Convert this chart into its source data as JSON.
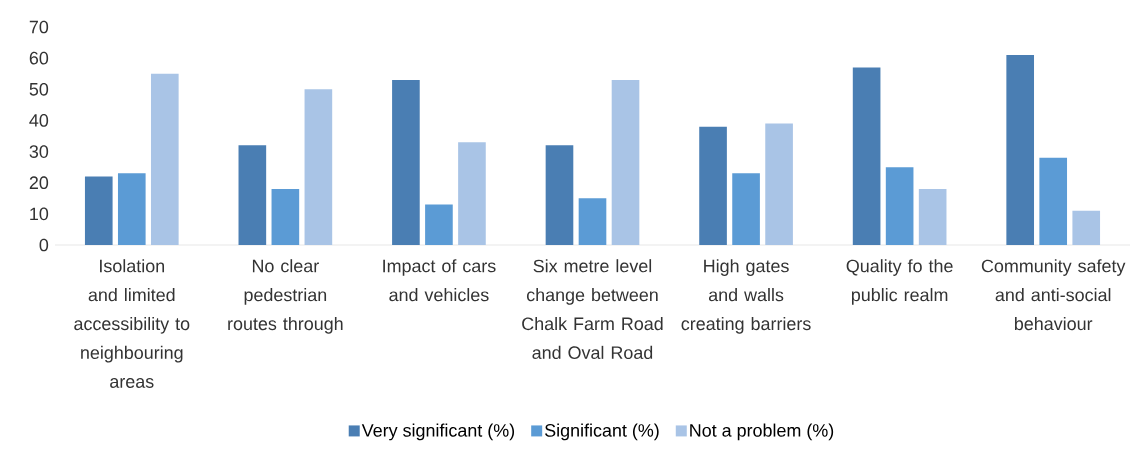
{
  "chart_data": {
    "type": "bar",
    "categories": [
      "Isolation and limited accessibility to neighbouring areas",
      "No clear pedestrian routes through",
      "Impact of cars and vehicles",
      "Six metre level change between Chalk Farm Road and Oval Road",
      "High gates and walls creating barriers",
      "Quality fo the public realm",
      "Community safety and anti-social behaviour"
    ],
    "series": [
      {
        "name": "Very significant (%)",
        "color": "#4a7eb3",
        "values": [
          22,
          32,
          53,
          32,
          38,
          57,
          61
        ]
      },
      {
        "name": "Significant (%)",
        "color": "#5b9bd5",
        "values": [
          23,
          18,
          13,
          15,
          23,
          25,
          28
        ]
      },
      {
        "name": "Not a problem (%)",
        "color": "#a9c4e6",
        "values": [
          55,
          50,
          33,
          53,
          39,
          18,
          11
        ]
      }
    ],
    "ylim": [
      0,
      70
    ],
    "yticks": [
      0,
      10,
      20,
      30,
      40,
      50,
      60,
      70
    ],
    "legend": "bottom"
  }
}
